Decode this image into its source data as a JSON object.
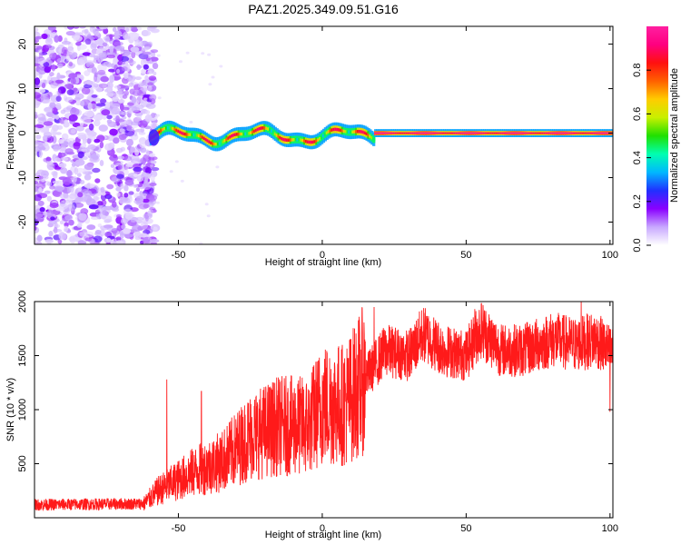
{
  "title": "PAZ1.2025.349.09.51.G16",
  "chart_data": [
    {
      "type": "heatmap",
      "xlabel": "Height of straight line (km)",
      "ylabel": "Frequency (Hz)",
      "xlim": [
        -100,
        101
      ],
      "ylim": [
        -25,
        24
      ],
      "xticks": [
        -50,
        0,
        50,
        100
      ],
      "yticks": [
        -20,
        -10,
        0,
        10,
        20
      ],
      "colorbar": {
        "label": "Normalized spectral amplitude",
        "range": [
          0.0,
          1.0
        ],
        "ticks": [
          0.0,
          0.2,
          0.4,
          0.6,
          0.8
        ],
        "colors": [
          "#ffffff",
          "#c8a8ff",
          "#8a00ff",
          "#2030ff",
          "#00b8ff",
          "#00ffb0",
          "#20e000",
          "#c8f000",
          "#ffcc00",
          "#ff6000",
          "#ff1010",
          "#ff0080",
          "#ff1fa0"
        ]
      },
      "ridge": {
        "start_km": -60,
        "freq_hz": 0,
        "noise_region_km": [
          -100,
          -60
        ],
        "strong_from_km": 18
      }
    },
    {
      "type": "line",
      "xlabel": "Height of straight line (km)",
      "ylabel": "SNR (10 * v/v)",
      "xlim": [
        -100,
        101
      ],
      "ylim": [
        0,
        2000
      ],
      "xticks": [
        -50,
        0,
        50,
        100
      ],
      "yticks": [
        500,
        1000,
        1500,
        2000
      ],
      "line_color": "#ff1a1a",
      "trend": [
        {
          "x": -100,
          "y": 120
        },
        {
          "x": -62,
          "y": 130
        },
        {
          "x": -57,
          "y": 250
        },
        {
          "x": -45,
          "y": 420
        },
        {
          "x": -35,
          "y": 520
        },
        {
          "x": -25,
          "y": 750
        },
        {
          "x": -15,
          "y": 850
        },
        {
          "x": -5,
          "y": 850
        },
        {
          "x": 0,
          "y": 1050
        },
        {
          "x": 8,
          "y": 1050
        },
        {
          "x": 15,
          "y": 1300
        },
        {
          "x": 22,
          "y": 1550
        },
        {
          "x": 30,
          "y": 1500
        },
        {
          "x": 35,
          "y": 1700
        },
        {
          "x": 42,
          "y": 1550
        },
        {
          "x": 50,
          "y": 1500
        },
        {
          "x": 55,
          "y": 1750
        },
        {
          "x": 62,
          "y": 1550
        },
        {
          "x": 70,
          "y": 1550
        },
        {
          "x": 80,
          "y": 1650
        },
        {
          "x": 88,
          "y": 1600
        },
        {
          "x": 95,
          "y": 1650
        },
        {
          "x": 101,
          "y": 1520
        }
      ],
      "spikes": [
        {
          "x": -54,
          "y": 1280
        },
        {
          "x": -42,
          "y": 1170
        },
        {
          "x": 18,
          "y": 1950
        },
        {
          "x": 53,
          "y": 1930
        },
        {
          "x": 90,
          "y": 2000
        },
        {
          "x": 100,
          "y": 980
        }
      ]
    }
  ]
}
